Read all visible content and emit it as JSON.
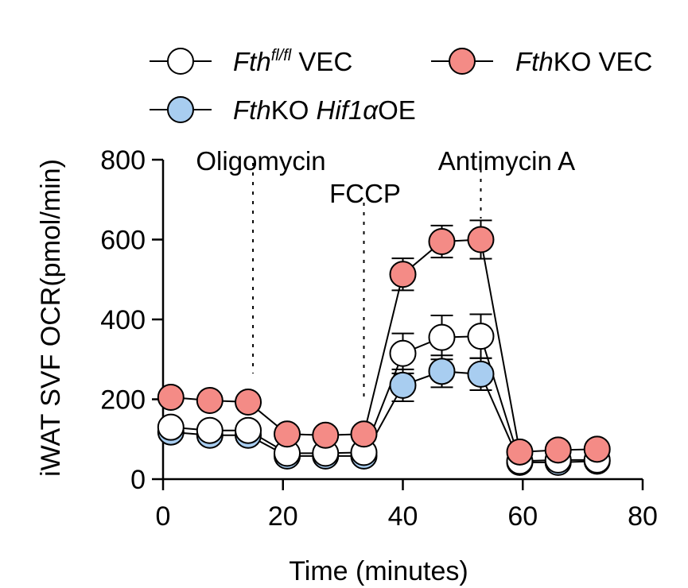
{
  "chart_data": {
    "type": "line",
    "xlabel": "Time (minutes)",
    "ylabel": "iWAT SVF OCR(pmol/min)",
    "xlim": [
      0,
      80
    ],
    "ylim": [
      0,
      800
    ],
    "xticks": [
      0,
      20,
      40,
      60,
      80
    ],
    "yticks": [
      0,
      200,
      400,
      600,
      800
    ],
    "grid": false,
    "legend_position": "top",
    "injections": [
      {
        "label": "Oligomycin",
        "x": 15
      },
      {
        "label": "FCCP",
        "x": 33.5
      },
      {
        "label": "Antimycin A",
        "x": 53
      }
    ],
    "x": [
      1.3,
      7.8,
      14.2,
      20.7,
      27.1,
      33.5,
      40,
      46.5,
      53,
      59.5,
      65.9,
      72.4
    ],
    "series": [
      {
        "name": "Fth fl/fl VEC",
        "name_parts": [
          "Fth",
          "fl/fl",
          " VEC"
        ],
        "color": "#ffffff",
        "values": [
          130,
          122,
          122,
          65,
          65,
          67,
          315,
          355,
          358,
          45,
          48,
          48
        ],
        "errors": [
          12,
          12,
          12,
          8,
          8,
          8,
          50,
          55,
          55,
          8,
          8,
          8
        ]
      },
      {
        "name": "FthKO VEC",
        "name_parts": [
          "Fth",
          "KO VEC"
        ],
        "color": "#f48b86",
        "values": [
          205,
          197,
          193,
          113,
          110,
          113,
          513,
          595,
          600,
          68,
          73,
          75
        ],
        "errors": [
          10,
          10,
          10,
          8,
          8,
          8,
          40,
          40,
          48,
          8,
          8,
          8
        ]
      },
      {
        "name": "FthKO Hif1αOE",
        "name_parts": [
          "Fth",
          "KO ",
          "Hif1α",
          "OE"
        ],
        "color": "#a8cdf0",
        "values": [
          118,
          110,
          110,
          58,
          58,
          58,
          235,
          270,
          263,
          42,
          42,
          45
        ],
        "errors": [
          8,
          8,
          8,
          6,
          6,
          6,
          40,
          40,
          40,
          6,
          6,
          6
        ]
      }
    ]
  }
}
